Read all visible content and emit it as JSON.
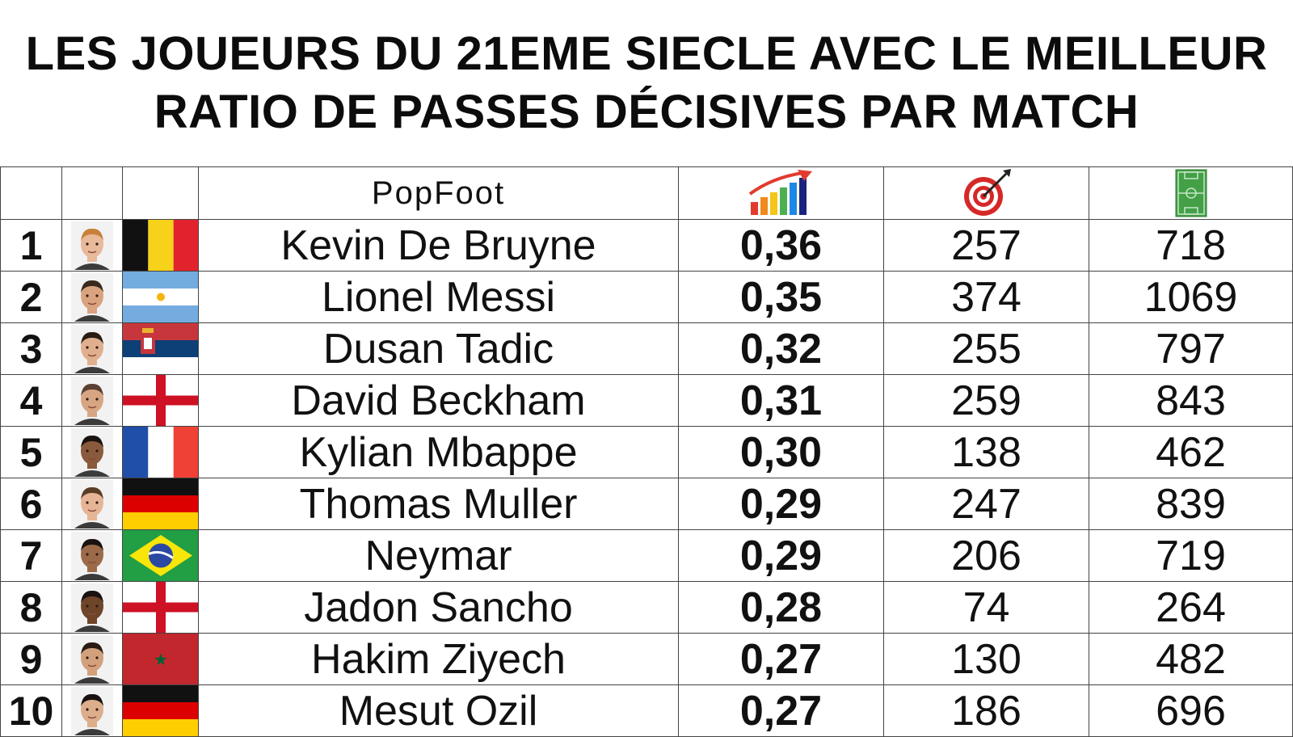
{
  "title": {
    "line1": "LES JOUEURS DU 21EME SIECLE AVEC LE MEILLEUR",
    "line2": "RATIO DE PASSES DÉCISIVES PAR MATCH"
  },
  "header": {
    "brand": "PopFoot",
    "ratio_icon": "bar-chart-growth-icon",
    "assists_icon": "target-icon",
    "matches_icon": "football-pitch-icon"
  },
  "rows": [
    {
      "rank": "1",
      "name": "Kevin De Bruyne",
      "ratio": "0,36",
      "assists": "257",
      "matches": "718",
      "flag": "belgium",
      "photo": "player-photo"
    },
    {
      "rank": "2",
      "name": "Lionel Messi",
      "ratio": "0,35",
      "assists": "374",
      "matches": "1069",
      "flag": "argentina",
      "photo": "player-photo"
    },
    {
      "rank": "3",
      "name": "Dusan Tadic",
      "ratio": "0,32",
      "assists": "255",
      "matches": "797",
      "flag": "serbia",
      "photo": "player-photo"
    },
    {
      "rank": "4",
      "name": "David Beckham",
      "ratio": "0,31",
      "assists": "259",
      "matches": "843",
      "flag": "england",
      "photo": "player-photo"
    },
    {
      "rank": "5",
      "name": "Kylian Mbappe",
      "ratio": "0,30",
      "assists": "138",
      "matches": "462",
      "flag": "france",
      "photo": "player-photo"
    },
    {
      "rank": "6",
      "name": "Thomas Muller",
      "ratio": "0,29",
      "assists": "247",
      "matches": "839",
      "flag": "germany",
      "photo": "player-photo"
    },
    {
      "rank": "7",
      "name": "Neymar",
      "ratio": "0,29",
      "assists": "206",
      "matches": "719",
      "flag": "brazil",
      "photo": "player-photo"
    },
    {
      "rank": "8",
      "name": "Jadon Sancho",
      "ratio": "0,28",
      "assists": "74",
      "matches": "264",
      "flag": "england",
      "photo": "player-photo"
    },
    {
      "rank": "9",
      "name": "Hakim Ziyech",
      "ratio": "0,27",
      "assists": "130",
      "matches": "482",
      "flag": "morocco",
      "photo": "player-photo"
    },
    {
      "rank": "10",
      "name": "Mesut Ozil",
      "ratio": "0,27",
      "assists": "186",
      "matches": "696",
      "flag": "germany",
      "photo": "player-photo"
    }
  ],
  "colors": {
    "border": "#444444",
    "text": "#111111",
    "background": "#ffffff"
  }
}
